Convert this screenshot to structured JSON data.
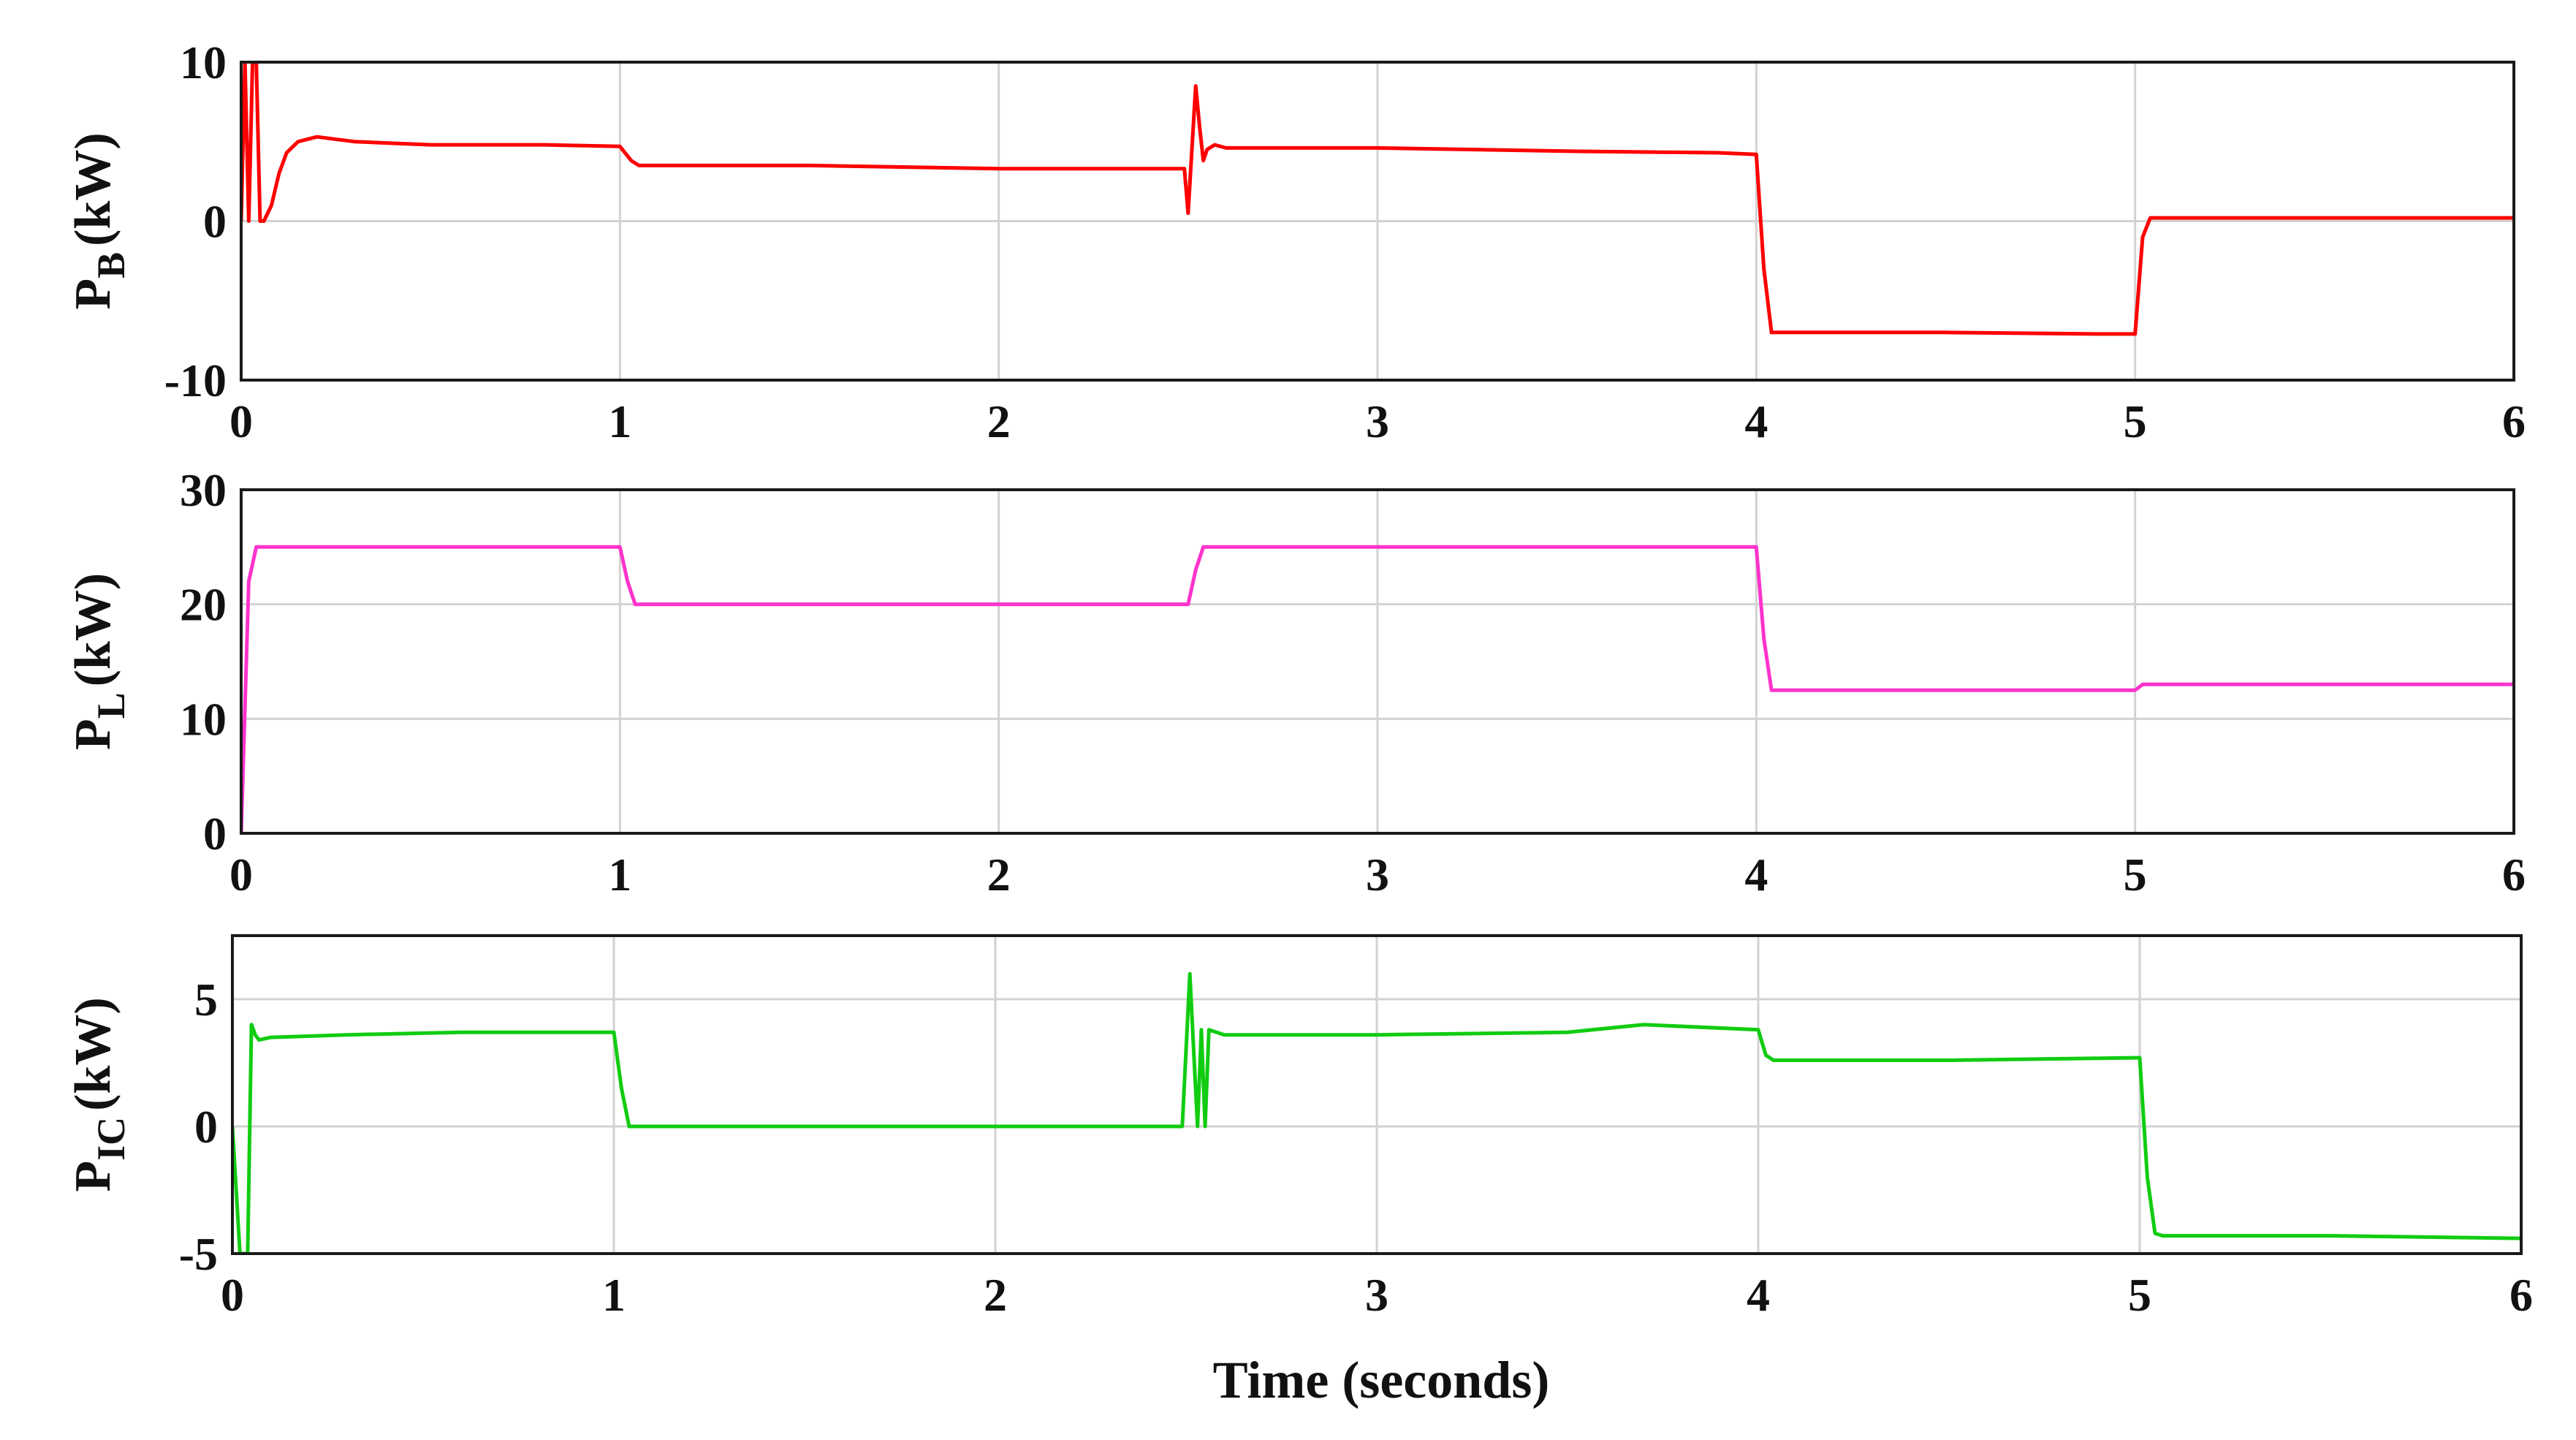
{
  "chart_data": [
    {
      "type": "line",
      "ylabel_main": "P",
      "ylabel_sub": "B",
      "ylabel_unit": "(kW)",
      "xlim": [
        0,
        6
      ],
      "ylim": [
        -10,
        10
      ],
      "xticks": [
        "0",
        "1",
        "2",
        "3",
        "4",
        "5",
        "6"
      ],
      "yticks": [
        "-10",
        "0",
        "10"
      ],
      "grid": true,
      "color": "#ff0000",
      "series": [
        {
          "x": [
            0,
            0.01,
            0.02,
            0.03,
            0.04,
            0.05,
            0.06,
            0.08,
            0.1,
            0.12,
            0.15,
            0.2,
            0.3,
            0.5,
            0.8,
            1.0,
            1.03,
            1.05,
            1.5,
            2.0,
            2.4,
            2.49,
            2.5,
            2.52,
            2.53,
            2.54,
            2.55,
            2.57,
            2.6,
            3.0,
            3.5,
            3.9,
            4.0,
            4.02,
            4.04,
            4.5,
            4.9,
            5.0,
            5.02,
            5.04,
            5.5,
            6.0
          ],
          "y": [
            0,
            10,
            0,
            10,
            10,
            0,
            0,
            1,
            3,
            4.3,
            5,
            5.3,
            5,
            4.8,
            4.8,
            4.7,
            3.8,
            3.5,
            3.5,
            3.3,
            3.3,
            3.3,
            0.5,
            8.5,
            6,
            3.8,
            4.5,
            4.8,
            4.6,
            4.6,
            4.4,
            4.3,
            4.2,
            -3,
            -7,
            -7,
            -7.1,
            -7.1,
            -1,
            0.2,
            0.2,
            0.2
          ]
        }
      ]
    },
    {
      "type": "line",
      "ylabel_main": "P",
      "ylabel_sub": "L",
      "ylabel_unit": "(kW)",
      "xlim": [
        0,
        6
      ],
      "ylim": [
        0,
        30
      ],
      "xticks": [
        "0",
        "1",
        "2",
        "3",
        "4",
        "5",
        "6"
      ],
      "yticks": [
        "0",
        "10",
        "20",
        "30"
      ],
      "grid": true,
      "color": "#ff33cc",
      "series": [
        {
          "x": [
            0,
            0.02,
            0.04,
            1.0,
            1.02,
            1.04,
            2.5,
            2.52,
            2.54,
            4.0,
            4.02,
            4.04,
            5.0,
            5.02,
            5.04,
            6.0
          ],
          "y": [
            0,
            22,
            25,
            25,
            22,
            20,
            20,
            23,
            25,
            25,
            17,
            12.5,
            12.5,
            13,
            13,
            13
          ]
        }
      ]
    },
    {
      "type": "line",
      "ylabel_main": "P",
      "ylabel_sub": "IC",
      "ylabel_unit": "(kW)",
      "xaxis_label": "Time (seconds)",
      "xlim": [
        0,
        6
      ],
      "ylim": [
        -5,
        7.5
      ],
      "xticks": [
        "0",
        "1",
        "2",
        "3",
        "4",
        "5",
        "6"
      ],
      "yticks": [
        "-5",
        "0",
        "5"
      ],
      "grid": true,
      "color": "#11cc11",
      "series": [
        {
          "x": [
            0,
            0.02,
            0.03,
            0.04,
            0.05,
            0.06,
            0.07,
            0.1,
            0.3,
            0.6,
            1.0,
            1.02,
            1.04,
            1.06,
            1.5,
            2.0,
            2.49,
            2.51,
            2.52,
            2.53,
            2.54,
            2.55,
            2.56,
            2.6,
            3.0,
            3.5,
            3.7,
            4.0,
            4.02,
            4.04,
            4.5,
            5.0,
            5.02,
            5.04,
            5.06,
            5.5,
            6.0
          ],
          "y": [
            0,
            -5,
            -5,
            -5,
            4,
            3.6,
            3.4,
            3.5,
            3.6,
            3.7,
            3.7,
            1.5,
            0,
            0,
            0,
            0,
            0,
            6,
            3,
            0,
            3.8,
            0,
            3.8,
            3.6,
            3.6,
            3.7,
            4.0,
            3.8,
            2.8,
            2.6,
            2.6,
            2.7,
            -2,
            -4.2,
            -4.3,
            -4.3,
            -4.4
          ]
        }
      ]
    }
  ]
}
